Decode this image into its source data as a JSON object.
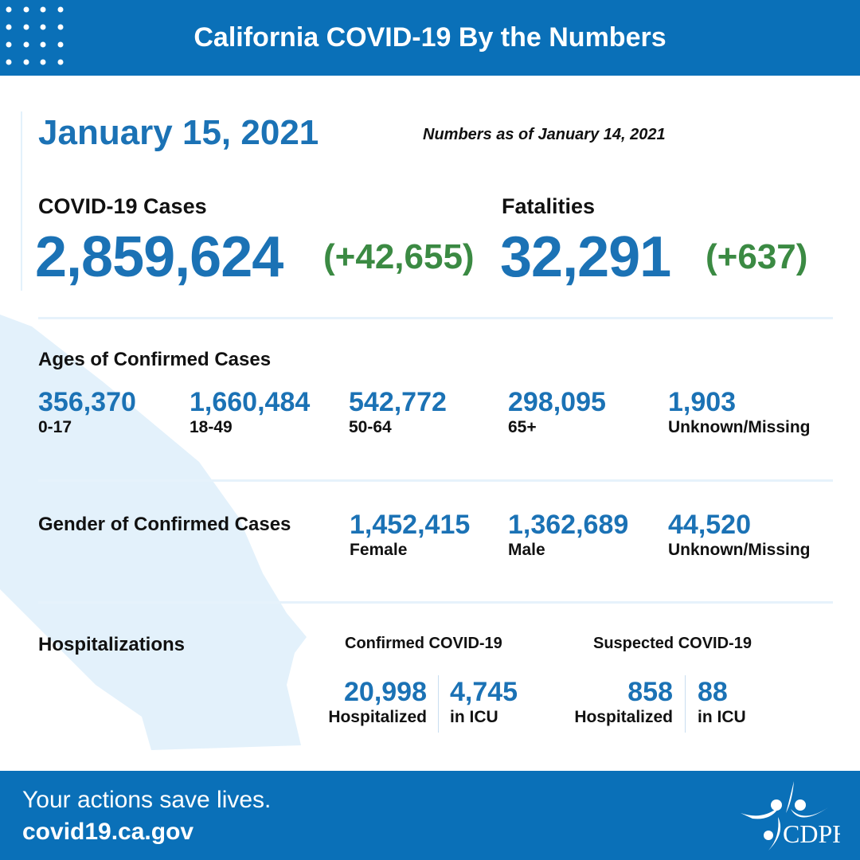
{
  "header": {
    "title": "California COVID-19 By the Numbers",
    "background": "#0a70b8"
  },
  "date": "January 15, 2021",
  "as_of": "Numbers as of January 14, 2021",
  "cases": {
    "label": "COVID-19 Cases",
    "total": "2,859,624",
    "change": "(+42,655)"
  },
  "fatalities": {
    "label": "Fatalities",
    "total": "32,291",
    "change": "(+637)"
  },
  "ages": {
    "title": "Ages of Confirmed Cases",
    "items": [
      {
        "value": "356,370",
        "label": "0-17"
      },
      {
        "value": "1,660,484",
        "label": "18-49"
      },
      {
        "value": "542,772",
        "label": "50-64"
      },
      {
        "value": "298,095",
        "label": "65+"
      },
      {
        "value": "1,903",
        "label": "Unknown/Missing"
      }
    ]
  },
  "gender": {
    "title": "Gender of Confirmed Cases",
    "items": [
      {
        "value": "1,452,415",
        "label": "Female"
      },
      {
        "value": "1,362,689",
        "label": "Male"
      },
      {
        "value": "44,520",
        "label": "Unknown/Missing"
      }
    ]
  },
  "hosp": {
    "title": "Hospitalizations",
    "confirmed": {
      "title": "Confirmed COVID-19",
      "hospitalized": "20,998",
      "hosp_label": "Hospitalized",
      "icu": "4,745",
      "icu_label": "in ICU"
    },
    "suspected": {
      "title": "Suspected COVID-19",
      "hospitalized": "858",
      "hosp_label": "Hospitalized",
      "icu": "88",
      "icu_label": "in ICU"
    }
  },
  "footer": {
    "tagline": "Your actions save lives.",
    "url": "covid19.ca.gov",
    "logo_text": "CDPH"
  },
  "colors": {
    "blue": "#1b72b5",
    "green": "#3b8a43",
    "map": "#e3f1fb"
  }
}
